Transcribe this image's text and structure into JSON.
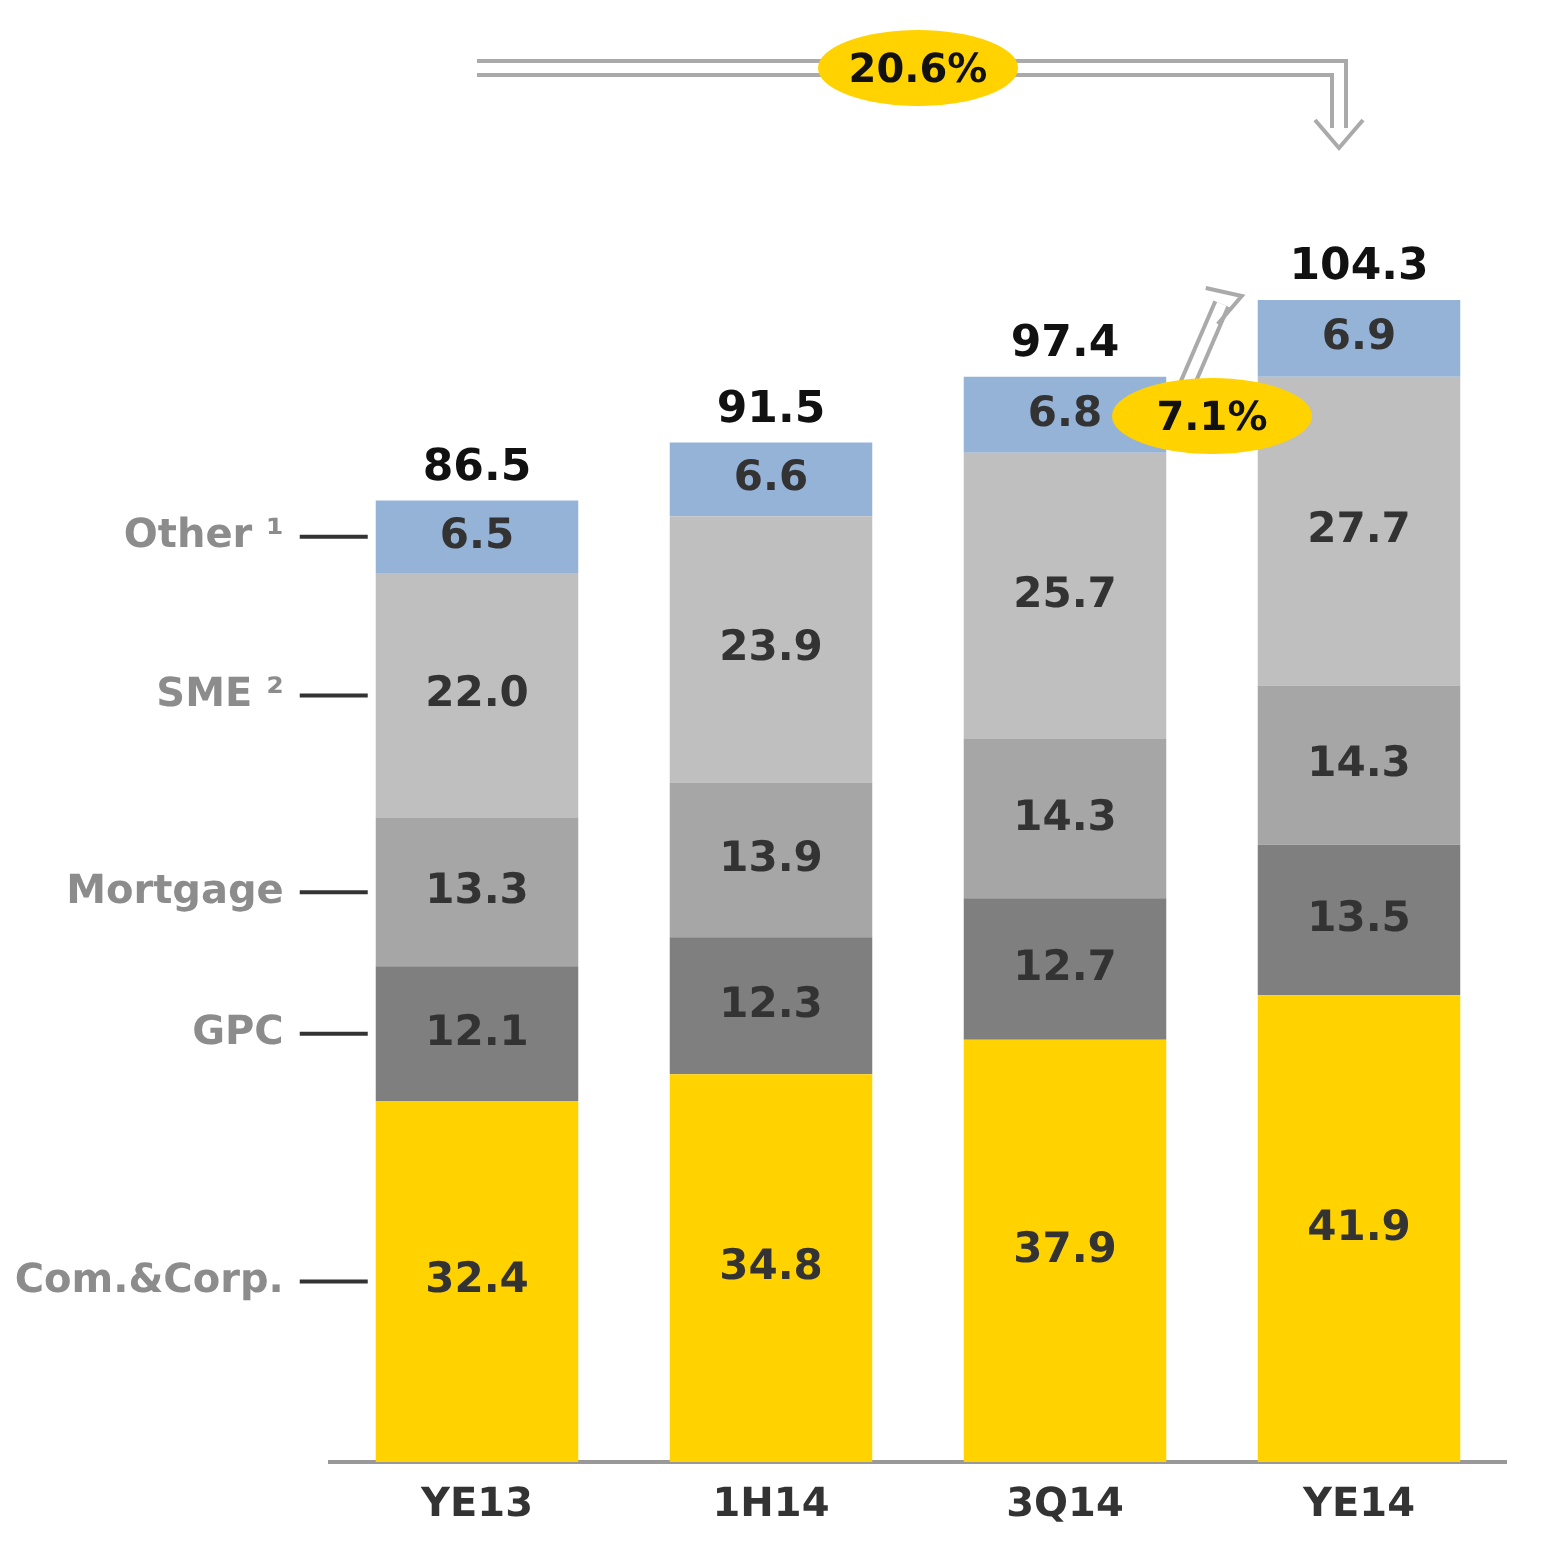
{
  "chart_data": {
    "type": "bar",
    "stacked": true,
    "categories": [
      "YE13",
      "1H14",
      "3Q14",
      "YE14"
    ],
    "series": [
      {
        "name": "Com.&Corp.",
        "color": "#ffd200",
        "values": [
          32.4,
          34.8,
          37.9,
          41.9
        ],
        "value_labels": [
          "32.4",
          "34.8",
          "37.9",
          "41.9"
        ]
      },
      {
        "name": "GPC",
        "color": "#7f7f7f",
        "values": [
          12.1,
          12.3,
          12.7,
          13.5
        ],
        "value_labels": [
          "12.1",
          "12.3",
          "12.7",
          "13.5"
        ]
      },
      {
        "name": "Mortgage",
        "color": "#a6a6a6",
        "values": [
          13.3,
          13.9,
          14.3,
          14.3
        ],
        "value_labels": [
          "13.3",
          "13.9",
          "14.3",
          "14.3"
        ]
      },
      {
        "name": "SME ²",
        "color": "#bfbfbf",
        "values": [
          22.0,
          23.9,
          25.7,
          27.7
        ],
        "value_labels": [
          "22.0",
          "23.9",
          "25.7",
          "27.7"
        ]
      },
      {
        "name": "Other ¹",
        "color": "#95b3d7",
        "values": [
          6.5,
          6.6,
          6.8,
          6.9
        ],
        "value_labels": [
          "6.5",
          "6.6",
          "6.8",
          "6.9"
        ]
      }
    ],
    "totals": [
      "86.5",
      "91.5",
      "97.4",
      "104.3"
    ],
    "annotations": [
      "20.6%",
      "7.1%"
    ]
  }
}
